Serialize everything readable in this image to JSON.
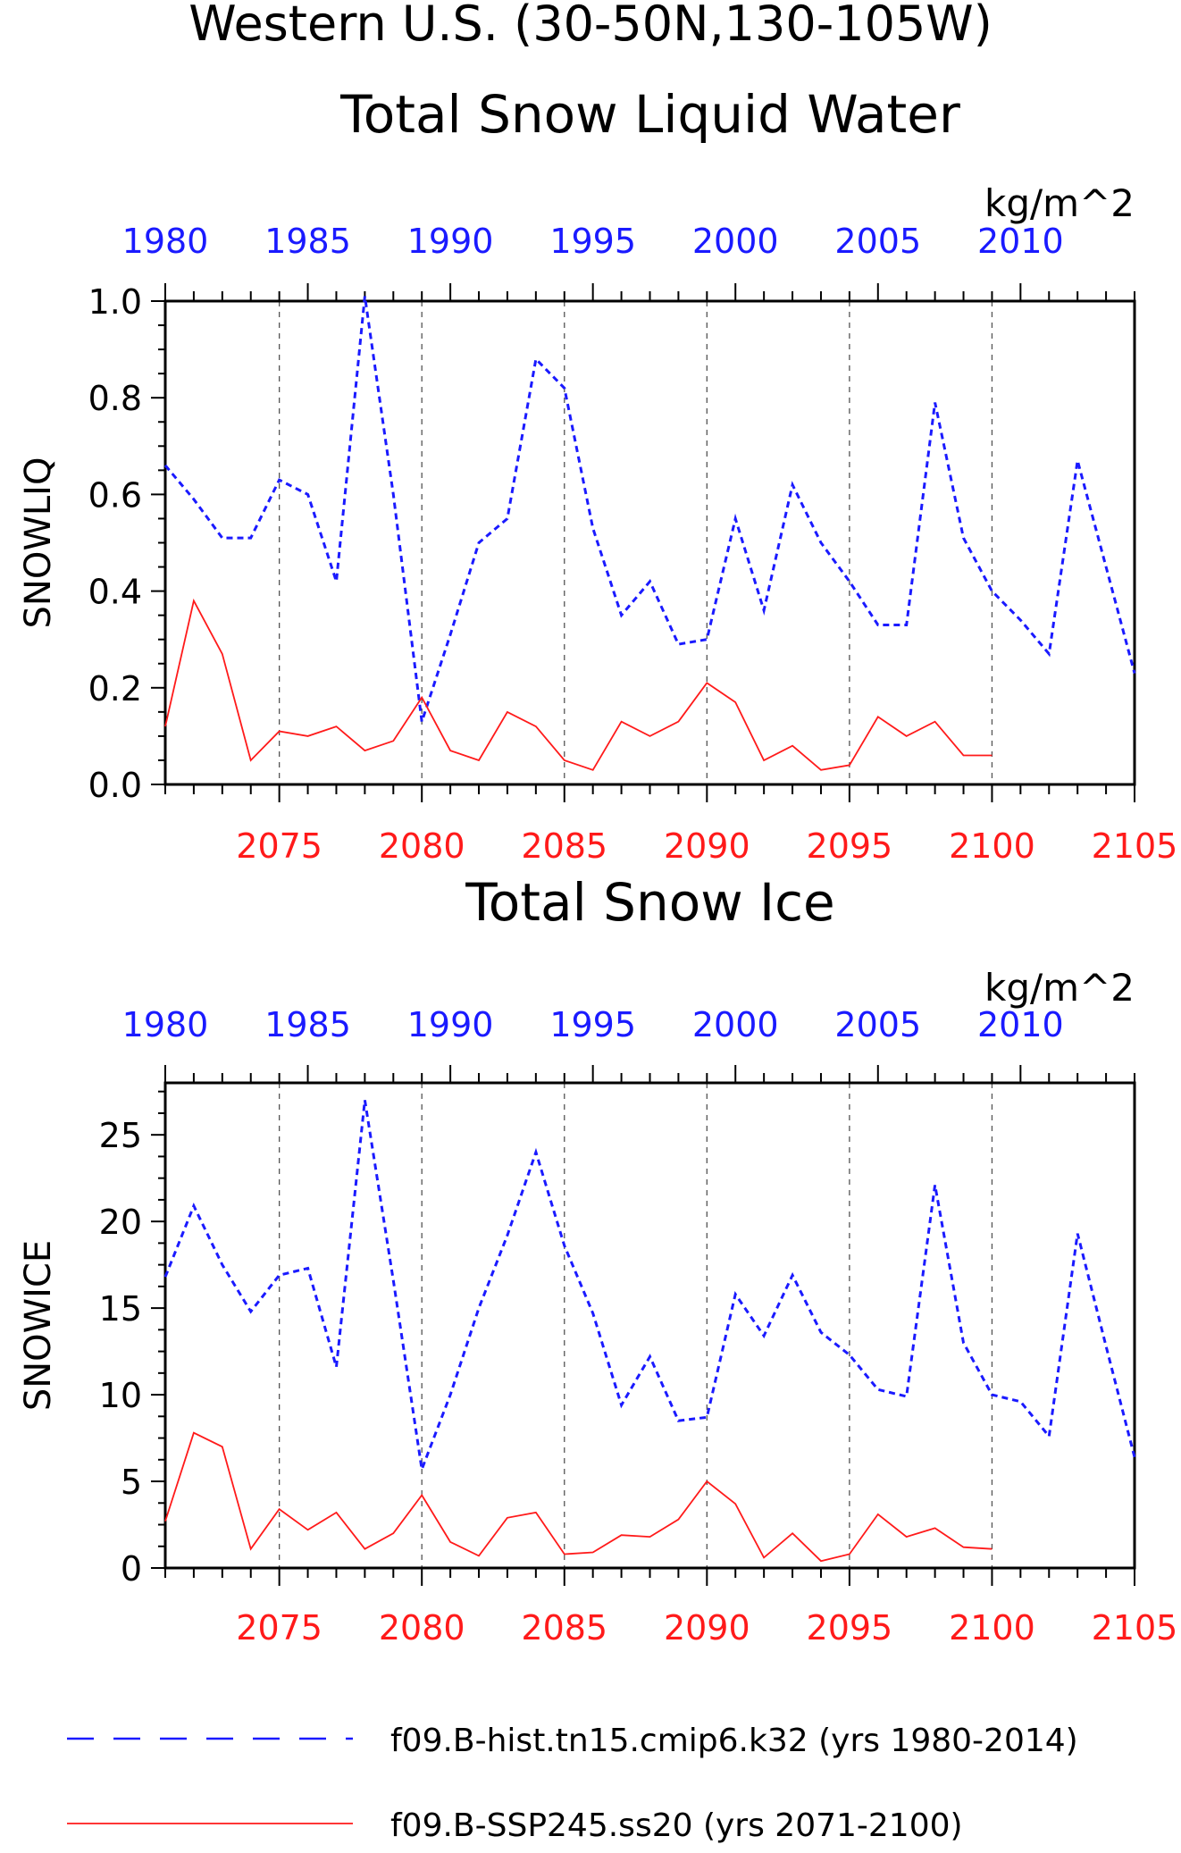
{
  "title_line1": "Western U.S. (30-50N,130-105W)",
  "colors": {
    "hist": "#1a1aff",
    "ssp": "#ff1a1a",
    "axis": "#000000",
    "grid": "#555555"
  },
  "legend": [
    {
      "label": "f09.B-hist.tn15.cmip6.k32 (yrs 1980-2014)",
      "color": "#1a1aff",
      "style": "dashed"
    },
    {
      "label": "f09.B-SSP245.ss20 (yrs 2071-2100)",
      "color": "#ff1a1a",
      "style": "solid"
    }
  ],
  "chart_data": [
    {
      "type": "line",
      "title": "Total Snow Liquid Water",
      "units": "kg/m^2",
      "ylabel": "SNOWLIQ",
      "ylim": [
        0,
        1.0
      ],
      "yticks": [
        "0.0",
        "0.2",
        "0.4",
        "0.6",
        "0.8",
        "1.0"
      ],
      "ytick_values": [
        0,
        0.2,
        0.4,
        0.6,
        0.8,
        1.0
      ],
      "top_axis": {
        "range": [
          1980,
          2014
        ],
        "ticks": [
          "1980",
          "1985",
          "1990",
          "1995",
          "2000",
          "2005",
          "2010"
        ]
      },
      "bottom_axis": {
        "range": [
          2071,
          2105
        ],
        "ticks": [
          "2075",
          "2080",
          "2085",
          "2090",
          "2095",
          "2100",
          "2105"
        ]
      },
      "grid": "vertical dashed at bottom-axis ticks",
      "series": [
        {
          "name": "f09.B-hist.tn15.cmip6.k32 (yrs 1980-2014)",
          "axis": "top",
          "style": "dashed",
          "x": [
            1980,
            1981,
            1982,
            1983,
            1984,
            1985,
            1986,
            1987,
            1988,
            1989,
            1990,
            1991,
            1992,
            1993,
            1994,
            1995,
            1996,
            1997,
            1998,
            1999,
            2000,
            2001,
            2002,
            2003,
            2004,
            2005,
            2006,
            2007,
            2008,
            2009,
            2010,
            2011,
            2012,
            2013,
            2014
          ],
          "values": [
            0.66,
            0.59,
            0.51,
            0.51,
            0.63,
            0.6,
            0.42,
            1.01,
            0.6,
            0.13,
            0.31,
            0.5,
            0.55,
            0.88,
            0.82,
            0.53,
            0.35,
            0.42,
            0.29,
            0.3,
            0.55,
            0.36,
            0.62,
            0.5,
            0.42,
            0.33,
            0.33,
            0.79,
            0.51,
            0.4,
            0.34,
            0.27,
            0.67,
            0.45,
            0.23
          ]
        },
        {
          "name": "f09.B-SSP245.ss20 (yrs 2071-2100)",
          "axis": "bottom",
          "style": "solid",
          "x": [
            2071,
            2072,
            2073,
            2074,
            2075,
            2076,
            2077,
            2078,
            2079,
            2080,
            2081,
            2082,
            2083,
            2084,
            2085,
            2086,
            2087,
            2088,
            2089,
            2090,
            2091,
            2092,
            2093,
            2094,
            2095,
            2096,
            2097,
            2098,
            2099,
            2100
          ],
          "values": [
            0.12,
            0.38,
            0.27,
            0.05,
            0.11,
            0.1,
            0.12,
            0.07,
            0.09,
            0.18,
            0.07,
            0.05,
            0.15,
            0.12,
            0.05,
            0.03,
            0.13,
            0.1,
            0.13,
            0.21,
            0.17,
            0.05,
            0.08,
            0.03,
            0.04,
            0.14,
            0.1,
            0.13,
            0.06,
            0.06
          ]
        }
      ]
    },
    {
      "type": "line",
      "title": "Total Snow Ice",
      "units": "kg/m^2",
      "ylabel": "SNOWICE",
      "ylim": [
        0,
        28
      ],
      "yticks": [
        "0",
        "5",
        "10",
        "15",
        "20",
        "25"
      ],
      "ytick_values": [
        0,
        5,
        10,
        15,
        20,
        25
      ],
      "top_axis": {
        "range": [
          1980,
          2014
        ],
        "ticks": [
          "1980",
          "1985",
          "1990",
          "1995",
          "2000",
          "2005",
          "2010"
        ]
      },
      "bottom_axis": {
        "range": [
          2071,
          2105
        ],
        "ticks": [
          "2075",
          "2080",
          "2085",
          "2090",
          "2095",
          "2100",
          "2105"
        ]
      },
      "grid": "vertical dashed at bottom-axis ticks",
      "series": [
        {
          "name": "f09.B-hist.tn15.cmip6.k32 (yrs 1980-2014)",
          "axis": "top",
          "style": "dashed",
          "x": [
            1980,
            1981,
            1982,
            1983,
            1984,
            1985,
            1986,
            1987,
            1988,
            1989,
            1990,
            1991,
            1992,
            1993,
            1994,
            1995,
            1996,
            1997,
            1998,
            1999,
            2000,
            2001,
            2002,
            2003,
            2004,
            2005,
            2006,
            2007,
            2008,
            2009,
            2010,
            2011,
            2012,
            2013,
            2014
          ],
          "values": [
            16.8,
            20.9,
            17.5,
            14.8,
            16.9,
            17.3,
            11.6,
            27.0,
            16.6,
            5.7,
            10.0,
            15.0,
            19.2,
            24.0,
            18.6,
            14.7,
            9.4,
            12.2,
            8.5,
            8.7,
            15.8,
            13.4,
            16.9,
            13.6,
            12.3,
            10.3,
            9.9,
            22.1,
            13.0,
            10.0,
            9.6,
            7.6,
            19.3,
            12.8,
            6.4
          ]
        },
        {
          "name": "f09.B-SSP245.ss20 (yrs 2071-2100)",
          "axis": "bottom",
          "style": "solid",
          "x": [
            2071,
            2072,
            2073,
            2074,
            2075,
            2076,
            2077,
            2078,
            2079,
            2080,
            2081,
            2082,
            2083,
            2084,
            2085,
            2086,
            2087,
            2088,
            2089,
            2090,
            2091,
            2092,
            2093,
            2094,
            2095,
            2096,
            2097,
            2098,
            2099,
            2100
          ],
          "values": [
            2.7,
            7.8,
            7.0,
            1.1,
            3.4,
            2.2,
            3.2,
            1.1,
            2.0,
            4.2,
            1.5,
            0.7,
            2.9,
            3.2,
            0.8,
            0.9,
            1.9,
            1.8,
            2.8,
            5.0,
            3.7,
            0.6,
            2.0,
            0.4,
            0.8,
            3.1,
            1.8,
            2.3,
            1.2,
            1.1
          ]
        }
      ]
    }
  ]
}
